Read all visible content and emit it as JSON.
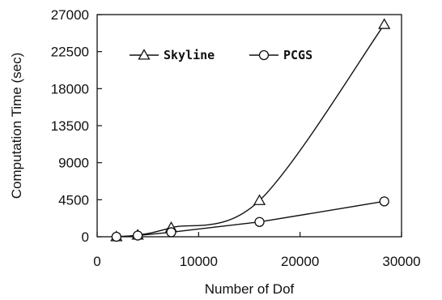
{
  "chart_data": {
    "type": "line",
    "title": "",
    "xlabel": "Number of Dof",
    "ylabel": "Computation Time (sec)",
    "xlim": [
      0,
      30000
    ],
    "ylim": [
      0,
      27000
    ],
    "xticks": [
      0,
      10000,
      20000,
      30000
    ],
    "yticks": [
      0,
      4500,
      9000,
      13500,
      18000,
      22500,
      27000
    ],
    "grid": false,
    "legend_position": "top",
    "series": [
      {
        "name": "Skyline",
        "marker": "triangle",
        "x": [
          1900,
          4000,
          7300,
          16000,
          28300
        ],
        "y": [
          0,
          200,
          1100,
          4400,
          25800
        ]
      },
      {
        "name": "PCGS",
        "marker": "circle",
        "x": [
          1900,
          4000,
          7300,
          16000,
          28300
        ],
        "y": [
          0,
          150,
          550,
          1800,
          4300
        ]
      }
    ]
  }
}
